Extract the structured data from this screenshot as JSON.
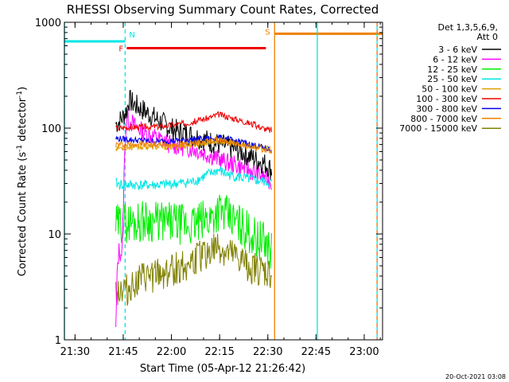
{
  "chart_data": {
    "type": "line",
    "title": "RHESSI Observing Summary Count Rates, Corrected",
    "xlabel": "Start Time (05-Apr-12 21:26:42)",
    "ylabel_main": "Corrected Count Rate (s",
    "ylabel_sup1": "-1",
    "ylabel_mid": " detector",
    "ylabel_sup2": "-1",
    "ylabel_end": ")",
    "x_unit": "minutes from 21:26:42",
    "xlim": [
      0,
      99
    ],
    "ylim": [
      1,
      1000
    ],
    "yscale": "log",
    "x_ticks": [
      {
        "label": "21:30",
        "x": 3.3
      },
      {
        "label": "21:45",
        "x": 18.3
      },
      {
        "label": "22:00",
        "x": 33.3
      },
      {
        "label": "22:15",
        "x": 48.3
      },
      {
        "label": "22:30",
        "x": 63.3
      },
      {
        "label": "22:45",
        "x": 78.3
      },
      {
        "label": "23:00",
        "x": 93.3
      }
    ],
    "y_ticks": [
      {
        "label": "1",
        "y": 1
      },
      {
        "label": "10",
        "y": 10
      },
      {
        "label": "100",
        "y": 100
      },
      {
        "label": "1000",
        "y": 1000
      }
    ],
    "legend": {
      "position": "right",
      "header": [
        "Det 1,3,5,6,9,",
        "Att 0"
      ],
      "entries": [
        "3 - 6 keV",
        "6 - 12 keV",
        "12 - 25 keV",
        "25 - 50 keV",
        "50 - 100 keV",
        "100 - 300 keV",
        "300 - 800 keV",
        "800 - 7000 keV",
        "7000 - 15000 keV"
      ]
    },
    "series": [
      {
        "name": "3 - 6 keV",
        "color": "#000000",
        "x": [
          16,
          17,
          18,
          19.5,
          20,
          22,
          25,
          28,
          30,
          33,
          36,
          40,
          45,
          50,
          55,
          60,
          63,
          64.5
        ],
        "y": [
          110,
          115,
          125,
          150,
          185,
          165,
          145,
          125,
          115,
          100,
          92,
          85,
          75,
          68,
          60,
          50,
          45,
          40
        ]
      },
      {
        "name": "6 - 12 keV",
        "color": "#ff00ff",
        "x": [
          16,
          16.5,
          17,
          17.5,
          18,
          18.5,
          19,
          19.5,
          20,
          22,
          25,
          30,
          33,
          36,
          40,
          45,
          50,
          55,
          60,
          63,
          64.5
        ],
        "y": [
          1.2,
          5,
          7,
          6.5,
          7,
          30,
          90,
          130,
          120,
          105,
          90,
          78,
          70,
          67,
          64,
          56,
          48,
          43,
          37,
          34,
          30
        ]
      },
      {
        "name": "12 - 25 keV",
        "color": "#00ee00",
        "x": [
          16,
          18,
          20,
          22,
          25,
          30,
          35,
          40,
          45,
          48,
          50,
          55,
          60,
          63,
          64.5
        ],
        "y": [
          12,
          13,
          13,
          13,
          13.5,
          13,
          12.5,
          12,
          14,
          17,
          15,
          12,
          9,
          8,
          7
        ]
      },
      {
        "name": "25 - 50 keV",
        "color": "#00e5e5",
        "x": [
          16,
          18,
          20,
          22,
          25,
          30,
          35,
          40,
          45,
          48,
          50,
          55,
          60,
          63,
          64.5
        ],
        "y": [
          30,
          29,
          29,
          29,
          29,
          29,
          30,
          31,
          37,
          40,
          37,
          34,
          32,
          31,
          30
        ]
      },
      {
        "name": "50 - 100 keV",
        "color": "#e0a000",
        "x": [
          16,
          20,
          25,
          30,
          35,
          40,
          45,
          48,
          50,
          55,
          60,
          63,
          64.5
        ],
        "y": [
          65,
          66,
          67,
          66,
          67,
          70,
          73,
          76,
          74,
          70,
          66,
          64,
          62
        ]
      },
      {
        "name": "100 - 300 keV",
        "color": "#ee0000",
        "x": [
          16,
          20,
          25,
          30,
          35,
          40,
          45,
          48,
          50,
          55,
          60,
          63,
          64.5
        ],
        "y": [
          100,
          102,
          103,
          104,
          108,
          115,
          125,
          135,
          130,
          118,
          105,
          97,
          95
        ]
      },
      {
        "name": "300 - 800 keV",
        "color": "#0000ee",
        "x": [
          16,
          20,
          25,
          30,
          35,
          40,
          45,
          48,
          50,
          55,
          60,
          63,
          64.5
        ],
        "y": [
          80,
          78,
          76,
          75,
          76,
          78,
          80,
          81,
          79,
          74,
          68,
          64,
          62
        ]
      },
      {
        "name": "800 - 7000 keV",
        "color": "#f08000",
        "x": [
          16,
          20,
          25,
          30,
          35,
          40,
          45,
          48,
          50,
          55,
          60,
          63,
          64.5
        ],
        "y": [
          70,
          70,
          71,
          70,
          70,
          72,
          76,
          78,
          75,
          70,
          64,
          62,
          60
        ]
      },
      {
        "name": "7000 - 15000 keV",
        "color": "#808000",
        "x": [
          16,
          20,
          22,
          25,
          30,
          35,
          40,
          45,
          48,
          50,
          55,
          60,
          63,
          64.5
        ],
        "y": [
          3,
          3,
          3.5,
          3.8,
          4.2,
          4.8,
          5.5,
          6.8,
          7.5,
          6.5,
          5.5,
          4.5,
          4.2,
          4
        ]
      }
    ],
    "intervals": [
      {
        "label": "F",
        "color": "#ee0000",
        "x0": 19.4,
        "x1": 62.7,
        "y": 570
      },
      {
        "label": "N",
        "color": "#00e5e5",
        "x0": -1,
        "x1": 18.9,
        "y": 660
      },
      {
        "label": "S",
        "color": "#f08000",
        "x0": 65.4,
        "x1": 99.9,
        "y": 780
      }
    ],
    "markers": [
      {
        "color": "#00e5e5",
        "x": 0,
        "style": "solid"
      },
      {
        "color": "#00e5e5",
        "x": 18.9,
        "style": "dashed"
      },
      {
        "color": "#f08000",
        "x": 65.4,
        "style": "solid"
      },
      {
        "color": "#00e5e5",
        "x": 78.7,
        "style": "solid"
      },
      {
        "color": "#00e5e5",
        "x": 97.3,
        "style": "solid"
      },
      {
        "color": "#f08000",
        "x": 97.3,
        "style": "dashed"
      }
    ],
    "grid": false
  },
  "footer": {
    "timestamp": "20-Oct-2021 03:08"
  }
}
